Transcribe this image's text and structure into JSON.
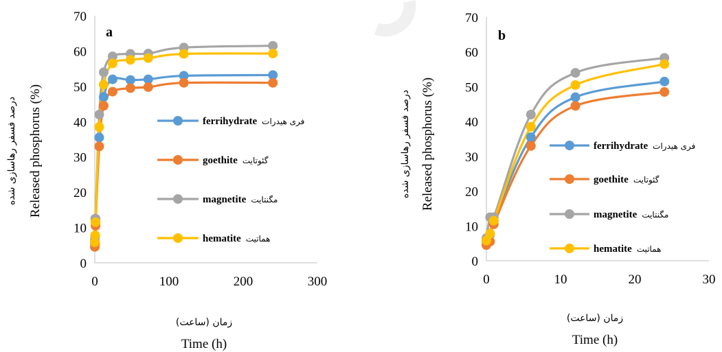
{
  "chart_data": [
    {
      "type": "line",
      "panel_label": "a",
      "ylabel": "Released phosphorus (%)",
      "ylabel_fa": "درصد فسفر رهاسازی شده",
      "xlabel": "Time (h)",
      "xlabel_fa": "زمان (ساعت)",
      "xlim": [
        0,
        300
      ],
      "ylim": [
        0,
        70
      ],
      "xticks": [
        "0",
        "100",
        "200",
        "300"
      ],
      "yticks": [
        "0",
        "10",
        "20",
        "30",
        "40",
        "50",
        "60",
        "70"
      ],
      "grid": false,
      "legend": "right",
      "series": [
        {
          "name": "ferrihydrate",
          "name_fa": "فری هیدرات",
          "color": "#5B9BD5",
          "x": [
            0,
            0.5,
            1,
            6,
            12,
            24,
            48,
            72,
            120,
            240
          ],
          "y": [
            5.5,
            7.5,
            11.5,
            35.5,
            47,
            52,
            51.8,
            52,
            53,
            53.2
          ]
        },
        {
          "name": "goethite",
          "name_fa": "گئوتایت",
          "color": "#ED7D31",
          "x": [
            0,
            0.5,
            1,
            6,
            12,
            24,
            48,
            72,
            120,
            240
          ],
          "y": [
            4.5,
            5.5,
            10.5,
            33,
            44.5,
            48.5,
            49.5,
            49.8,
            51,
            51
          ]
        },
        {
          "name": "magnetite",
          "name_fa": "مگنتایت",
          "color": "#A5A5A5",
          "x": [
            0,
            0.5,
            1,
            6,
            12,
            24,
            48,
            72,
            120,
            240
          ],
          "y": [
            6.5,
            12.5,
            12.5,
            42,
            54,
            58.5,
            59.2,
            59.3,
            61,
            61.5
          ]
        },
        {
          "name": "hematite",
          "name_fa": "هماتیت",
          "color": "#FFC000",
          "x": [
            0,
            0.5,
            1,
            6,
            12,
            24,
            48,
            72,
            120,
            240
          ],
          "y": [
            5.8,
            7.8,
            11.5,
            38.5,
            50.5,
            56.5,
            57.5,
            58,
            59.2,
            59.3
          ]
        }
      ]
    },
    {
      "type": "line",
      "panel_label": "b",
      "ylabel": "Released phosphorus (%)",
      "ylabel_fa": "درصد فسفر رهاسازی شده",
      "xlabel": "Time (h)",
      "xlabel_fa": "زمان (ساعت)",
      "xlim": [
        0,
        30
      ],
      "ylim": [
        0,
        70
      ],
      "xticks": [
        "0",
        "10",
        "20",
        "30"
      ],
      "yticks": [
        "0",
        "10",
        "20",
        "30",
        "40",
        "50",
        "60",
        "70"
      ],
      "grid": false,
      "legend": "right",
      "series": [
        {
          "name": "ferrihydrate",
          "name_fa": "فری هیدرات",
          "color": "#5B9BD5",
          "x": [
            0,
            0.5,
            1,
            6,
            12,
            24
          ],
          "y": [
            5.5,
            7.5,
            11.5,
            35.5,
            47,
            51.5
          ]
        },
        {
          "name": "goethite",
          "name_fa": "گئوتایت",
          "color": "#ED7D31",
          "x": [
            0,
            0.5,
            1,
            6,
            12,
            24
          ],
          "y": [
            4.5,
            5.5,
            10.5,
            33,
            44.5,
            48.5
          ]
        },
        {
          "name": "magnetite",
          "name_fa": "مگنتایت",
          "color": "#A5A5A5",
          "x": [
            0,
            0.5,
            1,
            6,
            12,
            24
          ],
          "y": [
            6.5,
            12.5,
            12.5,
            42,
            54,
            58.3
          ]
        },
        {
          "name": "hematite",
          "name_fa": "هماتیت",
          "color": "#FFC000",
          "x": [
            0,
            0.5,
            1,
            6,
            12,
            24
          ],
          "y": [
            5.8,
            7.8,
            11.5,
            38.5,
            50.5,
            56.5
          ]
        }
      ]
    }
  ]
}
